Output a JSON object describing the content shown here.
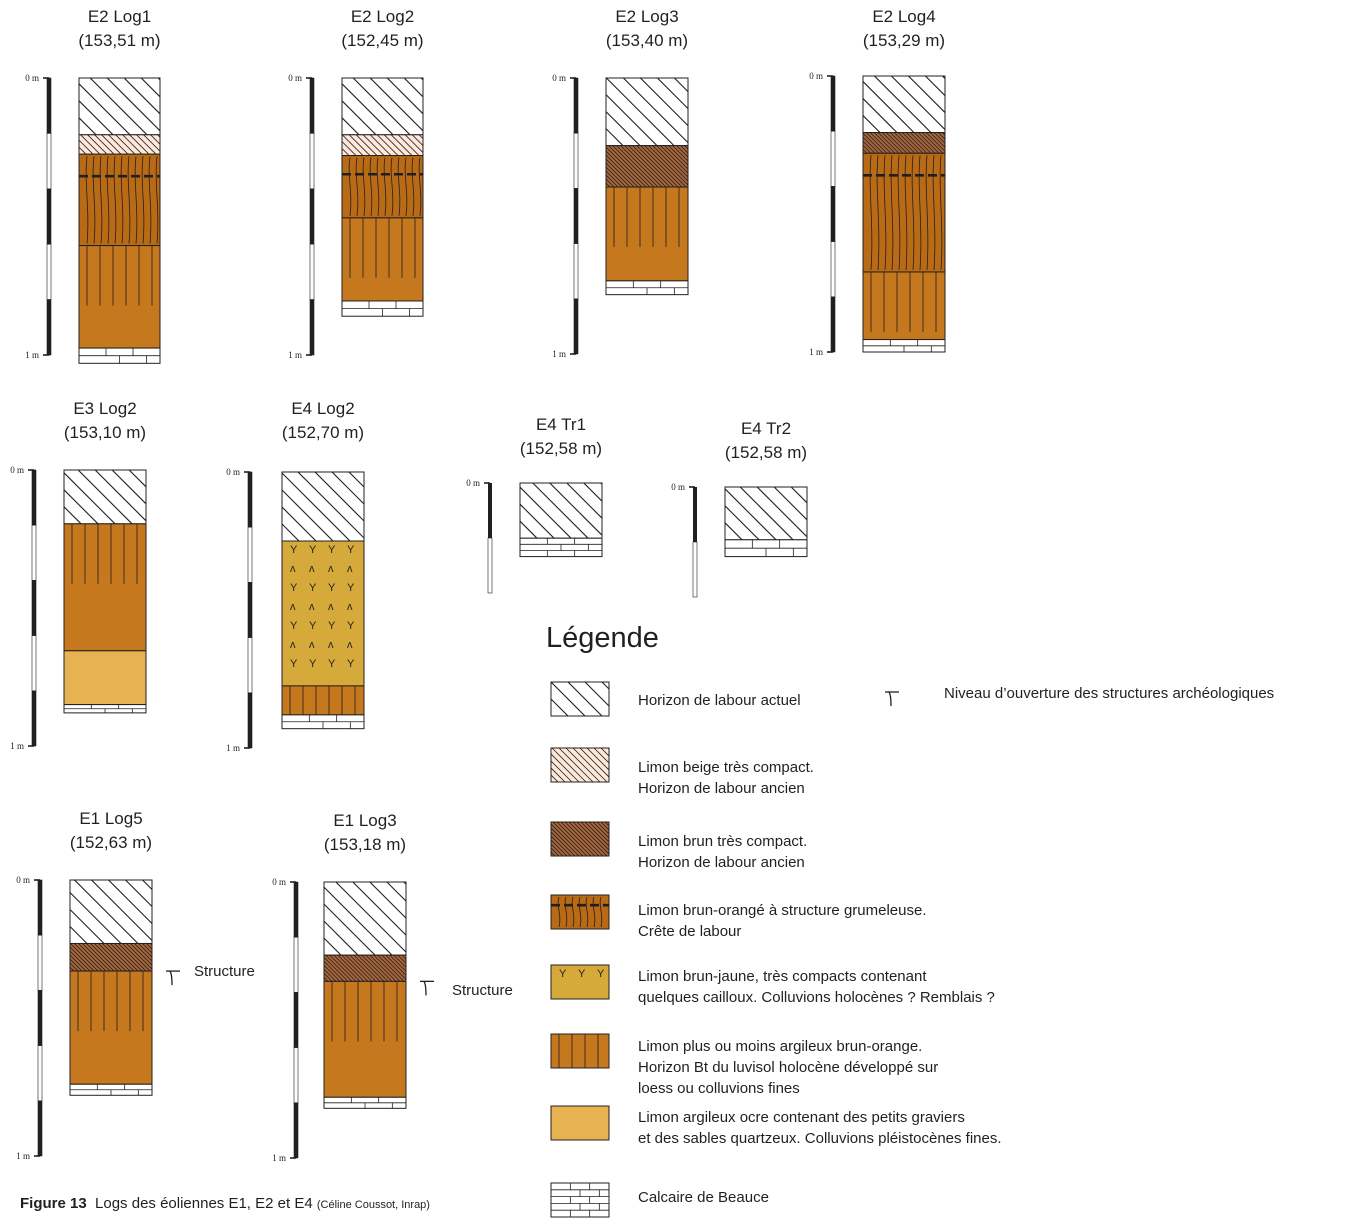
{
  "colors": {
    "orange": "#c5781e",
    "orange_dark": "#b86a14",
    "brown": "#a8673b",
    "beige": "#fde8da",
    "yellow": "#d5a93a",
    "ochre": "#e6b252",
    "line": "#231f20"
  },
  "scale_labels": {
    "top": "0 m",
    "bottom": "1 m"
  },
  "logs": [
    {
      "id": "E2 Log1",
      "title": "E2 Log1",
      "elevation": "(153,51 m)",
      "layers": [
        {
          "type": "labour_actuel",
          "from": 0,
          "to": 0.205
        },
        {
          "type": "beige",
          "from": 0.205,
          "to": 0.275
        },
        {
          "type": "crete",
          "from": 0.275,
          "to": 0.605
        },
        {
          "type": "bt",
          "from": 0.605,
          "to": 0.975
        },
        {
          "type": "calcaire",
          "from": 0.975,
          "to": 1.03
        }
      ]
    },
    {
      "id": "E2 Log2",
      "title": "E2 Log2",
      "elevation": "(152,45 m)",
      "layers": [
        {
          "type": "labour_actuel",
          "from": 0,
          "to": 0.205
        },
        {
          "type": "beige",
          "from": 0.205,
          "to": 0.28
        },
        {
          "type": "crete",
          "from": 0.28,
          "to": 0.505
        },
        {
          "type": "bt",
          "from": 0.505,
          "to": 0.805
        },
        {
          "type": "calcaire",
          "from": 0.805,
          "to": 0.86
        }
      ]
    },
    {
      "id": "E2 Log3",
      "title": "E2 Log3",
      "elevation": "(153,40 m)",
      "layers": [
        {
          "type": "labour_actuel",
          "from": 0,
          "to": 0.245
        },
        {
          "type": "brown",
          "from": 0.245,
          "to": 0.395
        },
        {
          "type": "bt",
          "from": 0.395,
          "to": 0.735
        },
        {
          "type": "calcaire",
          "from": 0.735,
          "to": 0.785
        }
      ]
    },
    {
      "id": "E2 Log4",
      "title": "E2 Log4",
      "elevation": "(153,29 m)",
      "layers": [
        {
          "type": "labour_actuel",
          "from": 0,
          "to": 0.205
        },
        {
          "type": "brown",
          "from": 0.205,
          "to": 0.28
        },
        {
          "type": "crete",
          "from": 0.28,
          "to": 0.71
        },
        {
          "type": "bt",
          "from": 0.71,
          "to": 0.955
        },
        {
          "type": "calcaire",
          "from": 0.955,
          "to": 1.0
        }
      ]
    },
    {
      "id": "E3 Log2",
      "title": "E3 Log2",
      "elevation": "(153,10 m)",
      "layers": [
        {
          "type": "labour_actuel",
          "from": 0,
          "to": 0.195
        },
        {
          "type": "bt",
          "from": 0.195,
          "to": 0.655
        },
        {
          "type": "ocre",
          "from": 0.655,
          "to": 0.85
        },
        {
          "type": "calcaire",
          "from": 0.85,
          "to": 0.88
        }
      ]
    },
    {
      "id": "E4 Log2",
      "title": "E4 Log2",
      "elevation": "(152,70 m)",
      "layers": [
        {
          "type": "labour_actuel",
          "from": 0,
          "to": 0.25
        },
        {
          "type": "yellow",
          "from": 0.25,
          "to": 0.775
        },
        {
          "type": "bt",
          "from": 0.775,
          "to": 0.88
        },
        {
          "type": "calcaire",
          "from": 0.88,
          "to": 0.93
        }
      ]
    },
    {
      "id": "E4 Tr1",
      "title": "E4 Tr1",
      "elevation": "(152,58 m)",
      "layers": [
        {
          "type": "labour_actuel",
          "from": 0,
          "to": 0.69
        },
        {
          "type": "calcaire",
          "from": 0.69,
          "to": 0.92
        }
      ]
    },
    {
      "id": "E4 Tr2",
      "title": "E4 Tr2",
      "elevation": "(152,58 m)",
      "layers": [
        {
          "type": "labour_actuel",
          "from": 0,
          "to": 0.66
        },
        {
          "type": "calcaire",
          "from": 0.66,
          "to": 0.87
        }
      ]
    },
    {
      "id": "E1 Log5",
      "title": "E1 Log5",
      "elevation": "(152,63 m)",
      "structure_label": "Structure",
      "layers": [
        {
          "type": "labour_actuel",
          "from": 0,
          "to": 0.23
        },
        {
          "type": "brown",
          "from": 0.23,
          "to": 0.33
        },
        {
          "type": "bt",
          "from": 0.33,
          "to": 0.74
        },
        {
          "type": "calcaire",
          "from": 0.74,
          "to": 0.78
        }
      ]
    },
    {
      "id": "E1 Log3",
      "title": "E1 Log3",
      "elevation": "(153,18 m)",
      "structure_label": "Structure",
      "layers": [
        {
          "type": "labour_actuel",
          "from": 0,
          "to": 0.265
        },
        {
          "type": "brown",
          "from": 0.265,
          "to": 0.36
        },
        {
          "type": "bt",
          "from": 0.36,
          "to": 0.78
        },
        {
          "type": "calcaire",
          "from": 0.78,
          "to": 0.82
        }
      ]
    }
  ],
  "legend": {
    "title": "Légende",
    "items": [
      {
        "type": "labour_actuel",
        "label": "Horizon de labour actuel"
      },
      {
        "type": "beige",
        "label": "Limon beige très compact.\nHorizon de labour ancien"
      },
      {
        "type": "brown",
        "label": "Limon brun très compact.\nHorizon de labour ancien"
      },
      {
        "type": "crete",
        "label": "Limon brun-orangé à structure grumeleuse.\nCrête de labour"
      },
      {
        "type": "yellow",
        "label": "Limon brun-jaune, très compacts contenant\nquelques cailloux. Colluvions holocènes ? Remblais ?"
      },
      {
        "type": "bt",
        "label": "Limon plus ou moins argileux brun-orange.\nHorizon Bt du luvisol holocène développé sur\nloess ou colluvions fines"
      },
      {
        "type": "ocre",
        "label": "Limon argileux ocre contenant des petits graviers\net des sables quartzeux. Colluvions pléistocènes fines."
      },
      {
        "type": "calcaire",
        "label": "Calcaire de Beauce"
      }
    ],
    "structure_symbol_label": "Niveau d’ouverture des structures archéologiques"
  },
  "caption": {
    "figure": "Figure 13",
    "text": "Logs des éoliennes E1, E2 et E4",
    "credit": "(Céline Coussot, Inrap)"
  }
}
